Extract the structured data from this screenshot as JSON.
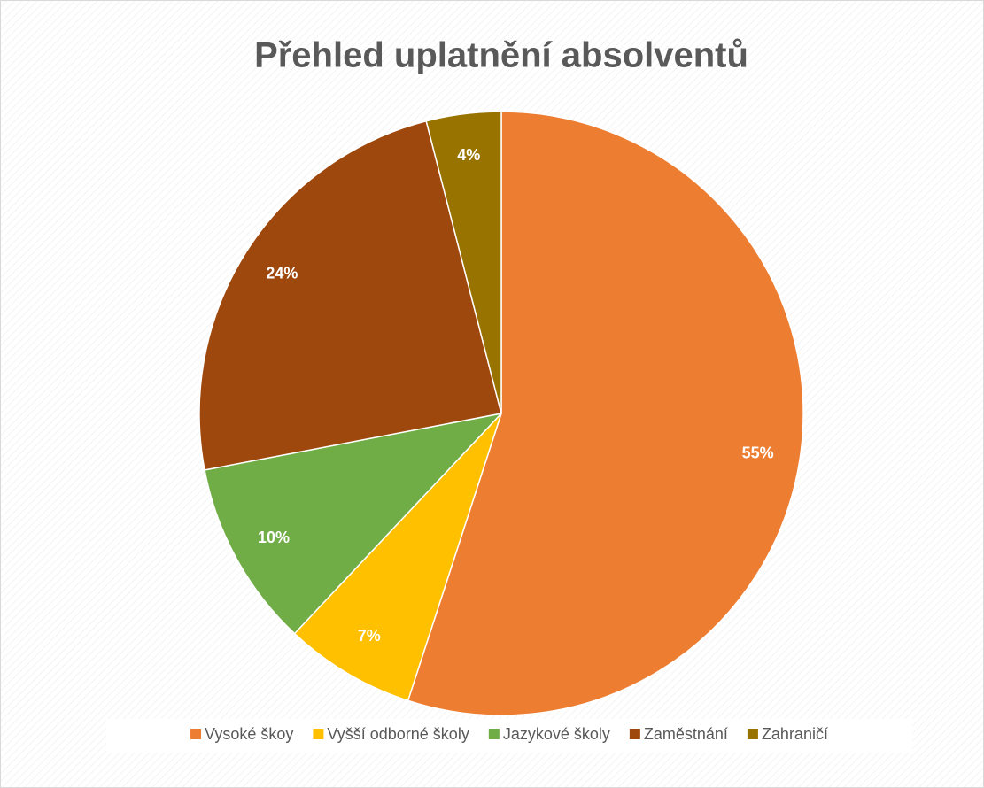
{
  "chart_data": {
    "type": "pie",
    "title": "Přehled uplatnění absolventů",
    "categories": [
      "Vysoké škoy",
      "Vyšší odborné školy",
      "Jazykové školy",
      "Zaměstnání",
      "Zahraničí"
    ],
    "values": [
      55,
      7,
      10,
      24,
      4
    ],
    "value_labels": [
      "55%",
      "7%",
      "10%",
      "24%",
      "4%"
    ],
    "colors": [
      "#ED7D31",
      "#FFC000",
      "#70AD47",
      "#9E480E",
      "#997300"
    ],
    "legend": "bottom"
  }
}
